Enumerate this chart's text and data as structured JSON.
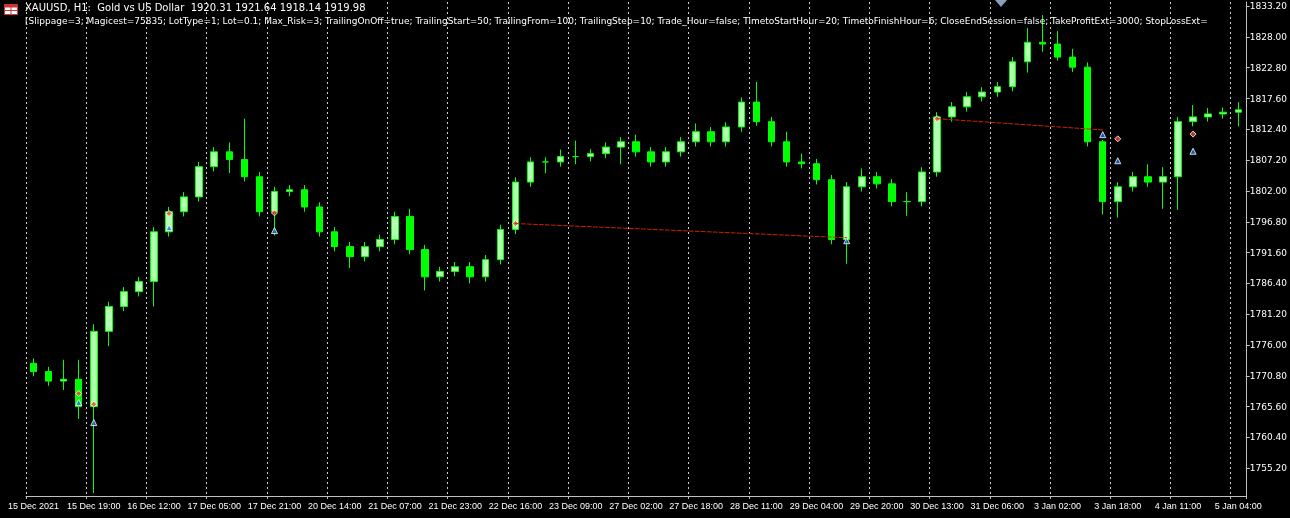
{
  "chart_data": {
    "type": "candlestick",
    "title": "XAUUSD, H1:  Gold vs US Dollar  1920.31 1921.64 1918.14 1919.98",
    "subtitle": "[Slippage=3; Magicest=75835; LotType=1; Lot=0.1; Max_Risk=3; TrailingOnOff=true; TrailingStart=50; TrailingFrom=100; TrailingStep=10; Trade_Hour=false; TimetoStartHour=20; TimetoFinishHour=6; CloseEndSession=false; TakeProfitExt=3000; StopLossExt=",
    "categories": [
      "15 Dec 2021",
      null,
      null,
      null,
      "15 Dec 19:00",
      null,
      null,
      null,
      "16 Dec 12:00",
      null,
      null,
      null,
      "17 Dec 05:00",
      null,
      null,
      null,
      "17 Dec 21:00",
      null,
      null,
      null,
      "20 Dec 14:00",
      null,
      null,
      null,
      "21 Dec 07:00",
      null,
      null,
      null,
      "21 Dec 23:00",
      null,
      null,
      null,
      "22 Dec 16:00",
      null,
      null,
      null,
      "23 Dec 09:00",
      null,
      null,
      null,
      "27 Dec 02:00",
      null,
      null,
      null,
      "27 Dec 18:00",
      null,
      null,
      null,
      "28 Dec 11:00",
      null,
      null,
      null,
      "29 Dec 04:00",
      null,
      null,
      null,
      "29 Dec 20:00",
      null,
      null,
      null,
      "30 Dec 13:00",
      null,
      null,
      null,
      "31 Dec 06:00",
      null,
      null,
      null,
      "3 Jan 02:00",
      null,
      null,
      null,
      "3 Jan 18:00",
      null,
      null,
      null,
      "4 Jan 11:00",
      null,
      null,
      null,
      "5 Jan 04:00"
    ],
    "ylim": [
      1750.5,
      1833.9
    ],
    "yticks": [
      {
        "value": 1755.2,
        "label": "1755.20"
      },
      {
        "value": 1760.4,
        "label": "1760.40"
      },
      {
        "value": 1765.6,
        "label": "1765.60"
      },
      {
        "value": 1770.8,
        "label": "1770.80"
      },
      {
        "value": 1776,
        "label": "1776.00"
      },
      {
        "value": 1781.2,
        "label": "1781.20"
      },
      {
        "value": 1786.4,
        "label": "1786.40"
      },
      {
        "value": 1791.6,
        "label": "1791.60"
      },
      {
        "value": 1796.8,
        "label": "1796.80"
      },
      {
        "value": 1802,
        "label": "1802.00"
      },
      {
        "value": 1807.2,
        "label": "1807.20"
      },
      {
        "value": 1812.4,
        "label": "1812.40"
      },
      {
        "value": 1817.6,
        "label": "1817.60"
      },
      {
        "value": 1822.8,
        "label": "1822.80"
      },
      {
        "value": 1828,
        "label": "1828.00"
      },
      {
        "value": 1833.2,
        "label": "1833.20"
      }
    ],
    "grid": "x",
    "series": [
      {
        "color": "#00ff00",
        "ohlc": [
          [
            1772.9,
            1773.7,
            1770.7,
            1771.5
          ],
          [
            1771.5,
            1772.3,
            1769.1,
            1769.9
          ],
          [
            1769.9,
            1773.5,
            1768.4,
            1770.2
          ],
          [
            1770.2,
            1773.5,
            1763.5,
            1765.6
          ],
          [
            1765.6,
            1779.5,
            1751.0,
            1778.3
          ],
          [
            1778.3,
            1783.3,
            1775.8,
            1782.5
          ],
          [
            1782.5,
            1785.8,
            1781.7,
            1785.0
          ],
          [
            1785.0,
            1787.5,
            1784.2,
            1786.7
          ],
          [
            1786.7,
            1795.9,
            1782.5,
            1795.1
          ],
          [
            1795.1,
            1799.3,
            1794.3,
            1798.5
          ],
          [
            1798.5,
            1801.8,
            1797.7,
            1801.0
          ],
          [
            1801.0,
            1806.9,
            1800.2,
            1806.1
          ],
          [
            1806.1,
            1809.4,
            1805.3,
            1808.6
          ],
          [
            1808.6,
            1810.2,
            1805.0,
            1807.3
          ],
          [
            1807.3,
            1814.2,
            1803.6,
            1804.4
          ],
          [
            1804.4,
            1805.2,
            1797.7,
            1798.5
          ],
          [
            1798.5,
            1802.7,
            1794.5,
            1801.9
          ],
          [
            1801.9,
            1803.0,
            1801.1,
            1802.2
          ],
          [
            1802.2,
            1803.0,
            1798.5,
            1799.3
          ],
          [
            1799.3,
            1800.1,
            1794.3,
            1795.1
          ],
          [
            1795.1,
            1795.9,
            1791.8,
            1792.6
          ],
          [
            1792.6,
            1793.4,
            1789.0,
            1790.9
          ],
          [
            1790.9,
            1793.4,
            1790.1,
            1792.6
          ],
          [
            1792.6,
            1794.6,
            1791.8,
            1793.8
          ],
          [
            1793.8,
            1798.5,
            1793.0,
            1797.7
          ],
          [
            1797.7,
            1799.0,
            1791.3,
            1792.1
          ],
          [
            1792.1,
            1792.9,
            1785.2,
            1787.5
          ],
          [
            1787.5,
            1789.2,
            1786.7,
            1788.4
          ],
          [
            1788.4,
            1790.0,
            1787.6,
            1789.2
          ],
          [
            1789.2,
            1790.0,
            1786.4,
            1787.5
          ],
          [
            1787.5,
            1791.2,
            1786.7,
            1790.4
          ],
          [
            1790.4,
            1796.3,
            1789.6,
            1795.5
          ],
          [
            1795.5,
            1804.3,
            1794.7,
            1803.5
          ],
          [
            1803.5,
            1807.7,
            1802.7,
            1806.9
          ],
          [
            1806.9,
            1807.7,
            1805.0,
            1806.9
          ],
          [
            1806.9,
            1809.0,
            1806.1,
            1807.8
          ],
          [
            1807.8,
            1810.5,
            1806.5,
            1807.8
          ],
          [
            1807.8,
            1809.1,
            1807.0,
            1808.3
          ],
          [
            1808.3,
            1810.2,
            1807.5,
            1809.4
          ],
          [
            1809.4,
            1811.1,
            1806.5,
            1810.3
          ],
          [
            1810.3,
            1811.5,
            1807.8,
            1808.6
          ],
          [
            1808.6,
            1809.4,
            1806.1,
            1806.9
          ],
          [
            1806.9,
            1809.4,
            1806.1,
            1808.6
          ],
          [
            1808.6,
            1811.1,
            1807.8,
            1810.3
          ],
          [
            1810.3,
            1813.4,
            1809.5,
            1812.0
          ],
          [
            1812.0,
            1812.8,
            1809.5,
            1810.3
          ],
          [
            1810.3,
            1813.6,
            1809.5,
            1812.8
          ],
          [
            1812.8,
            1817.8,
            1812.0,
            1817.0
          ],
          [
            1817.0,
            1820.4,
            1813.0,
            1813.7
          ],
          [
            1813.7,
            1814.5,
            1809.5,
            1810.3
          ],
          [
            1810.3,
            1812.0,
            1806.1,
            1806.9
          ],
          [
            1806.9,
            1808.3,
            1805.8,
            1806.6
          ],
          [
            1806.6,
            1807.4,
            1803.1,
            1803.9
          ],
          [
            1803.9,
            1804.7,
            1793.0,
            1793.8
          ],
          [
            1793.8,
            1803.5,
            1789.7,
            1802.7
          ],
          [
            1802.7,
            1805.8,
            1801.9,
            1804.4
          ],
          [
            1804.4,
            1805.2,
            1802.4,
            1803.2
          ],
          [
            1803.2,
            1804.0,
            1799.4,
            1800.2
          ],
          [
            1800.2,
            1801.8,
            1797.8,
            1800.2
          ],
          [
            1800.2,
            1806.0,
            1799.4,
            1805.2
          ],
          [
            1805.2,
            1815.3,
            1804.4,
            1814.5
          ],
          [
            1814.5,
            1817.0,
            1813.7,
            1816.2
          ],
          [
            1816.2,
            1818.7,
            1815.4,
            1817.9
          ],
          [
            1817.9,
            1819.5,
            1817.1,
            1818.7
          ],
          [
            1818.7,
            1820.4,
            1817.9,
            1819.6
          ],
          [
            1819.6,
            1824.6,
            1818.8,
            1823.8
          ],
          [
            1823.8,
            1829.5,
            1822.0,
            1827.1
          ],
          [
            1827.1,
            1831.7,
            1825.5,
            1826.8
          ],
          [
            1826.8,
            1829.0,
            1824.0,
            1824.6
          ],
          [
            1824.6,
            1826.0,
            1822.1,
            1822.9
          ],
          [
            1822.9,
            1823.7,
            1809.5,
            1810.3
          ],
          [
            1810.3,
            1810.6,
            1798.0,
            1800.2
          ],
          [
            1800.2,
            1803.5,
            1797.5,
            1802.7
          ],
          [
            1802.7,
            1805.2,
            1801.9,
            1804.4
          ],
          [
            1804.4,
            1806.5,
            1802.7,
            1803.5
          ],
          [
            1803.5,
            1806.0,
            1799.0,
            1804.4
          ],
          [
            1804.4,
            1814.5,
            1798.8,
            1813.7
          ],
          [
            1813.7,
            1816.5,
            1812.9,
            1814.5
          ],
          [
            1814.5,
            1816.0,
            1813.7,
            1815.0
          ],
          [
            1815.0,
            1816.1,
            1814.2,
            1815.3
          ],
          [
            1815.3,
            1817.0,
            1812.9,
            1815.7
          ]
        ]
      },
      {
        "type": "line",
        "color": "#cc2200",
        "line_style": "dashed",
        "marker": "none",
        "values": [
          null,
          null,
          null,
          null,
          null,
          null,
          null,
          null,
          null,
          null,
          null,
          null,
          null,
          null,
          null,
          null,
          null,
          null,
          null,
          null,
          null,
          null,
          null,
          null,
          null,
          null,
          null,
          null,
          null,
          null,
          null,
          null,
          1796.5,
          null,
          null,
          null,
          null,
          null,
          null,
          null,
          null,
          null,
          null,
          null,
          null,
          null,
          null,
          null,
          null,
          null,
          null,
          null,
          null,
          null,
          1794.1,
          null,
          null,
          null,
          null,
          null,
          null,
          null,
          null,
          null,
          null,
          null,
          null,
          null,
          null,
          null,
          null,
          null,
          null,
          null,
          null,
          null,
          null,
          null,
          null,
          null,
          null
        ]
      },
      {
        "type": "line",
        "color": "#cc2200",
        "line_style": "dashed",
        "marker": "none",
        "values": [
          null,
          null,
          null,
          null,
          null,
          null,
          null,
          null,
          null,
          null,
          null,
          null,
          null,
          null,
          null,
          null,
          null,
          null,
          null,
          null,
          null,
          null,
          null,
          null,
          null,
          null,
          null,
          null,
          null,
          null,
          null,
          null,
          null,
          null,
          null,
          null,
          null,
          null,
          null,
          null,
          null,
          null,
          null,
          null,
          null,
          null,
          null,
          null,
          null,
          null,
          null,
          null,
          null,
          null,
          null,
          null,
          null,
          null,
          null,
          null,
          1814.2,
          null,
          null,
          null,
          null,
          null,
          null,
          null,
          null,
          null,
          null,
          1812.3,
          null,
          null,
          null,
          null,
          null,
          null,
          null,
          null,
          null
        ]
      },
      {
        "type": "scatter",
        "color": "#e8462a",
        "marker": "diamond",
        "values": [
          null,
          null,
          null,
          1767.8,
          1766.0,
          null,
          null,
          null,
          null,
          1798.2,
          null,
          null,
          null,
          null,
          null,
          null,
          1798.3,
          null,
          null,
          null,
          null,
          null,
          null,
          null,
          null,
          null,
          null,
          null,
          null,
          null,
          null,
          null,
          1796.5,
          null,
          null,
          null,
          null,
          null,
          null,
          null,
          null,
          null,
          null,
          null,
          null,
          null,
          null,
          null,
          null,
          null,
          null,
          null,
          null,
          null,
          null,
          null,
          null,
          null,
          null,
          null,
          1814.2,
          null,
          null,
          null,
          null,
          null,
          null,
          null,
          null,
          null,
          null,
          null,
          1810.8,
          null,
          null,
          null,
          null,
          1811.6,
          null,
          null,
          null
        ]
      },
      {
        "type": "scatter",
        "color": "#1e6fd0",
        "marker": "triangle",
        "values": [
          null,
          null,
          null,
          1766.3,
          1762.9,
          null,
          null,
          null,
          null,
          1795.8,
          null,
          null,
          null,
          null,
          null,
          null,
          1795.3,
          null,
          null,
          null,
          null,
          null,
          null,
          null,
          null,
          null,
          null,
          null,
          null,
          null,
          null,
          null,
          null,
          null,
          null,
          null,
          null,
          null,
          null,
          null,
          null,
          null,
          null,
          null,
          null,
          null,
          null,
          null,
          null,
          null,
          null,
          null,
          null,
          null,
          1793.6,
          null,
          null,
          null,
          null,
          null,
          null,
          null,
          null,
          null,
          null,
          null,
          null,
          null,
          null,
          null,
          null,
          1811.5,
          1807.1,
          null,
          null,
          null,
          null,
          1808.7,
          null,
          null,
          null
        ]
      }
    ]
  }
}
